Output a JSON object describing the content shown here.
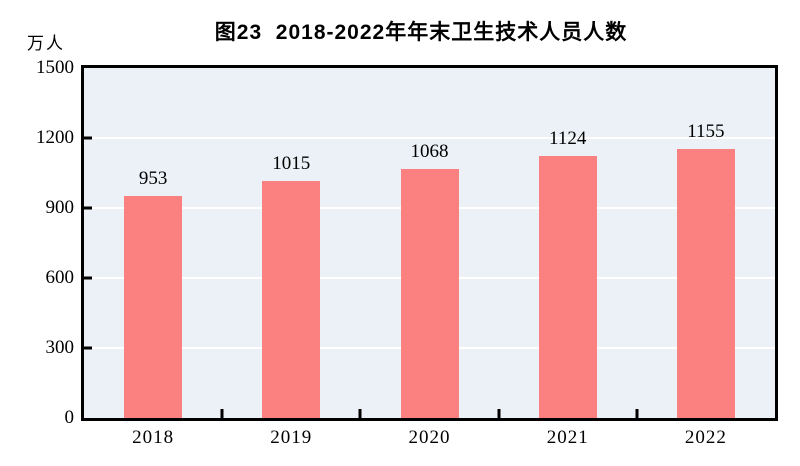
{
  "header": {
    "title": "图23  2018-2022年年末卫生技术人员人数",
    "unit_label": "万人"
  },
  "chart_data": {
    "type": "bar",
    "title": "图23  2018-2022年年末卫生技术人员人数",
    "categories": [
      "2018",
      "2019",
      "2020",
      "2021",
      "2022"
    ],
    "values": [
      953,
      1015,
      1068,
      1124,
      1155
    ],
    "xlabel": "",
    "ylabel": "万人",
    "ylim": [
      0,
      1500
    ],
    "yticks": [
      0,
      300,
      600,
      900,
      1200,
      1500
    ],
    "grid": true,
    "legend": "none",
    "bar_color": "#FB8080",
    "plot_background": "#EBF1F6",
    "gridline_color": "#FFFFFF",
    "axis_color": "#000000"
  }
}
